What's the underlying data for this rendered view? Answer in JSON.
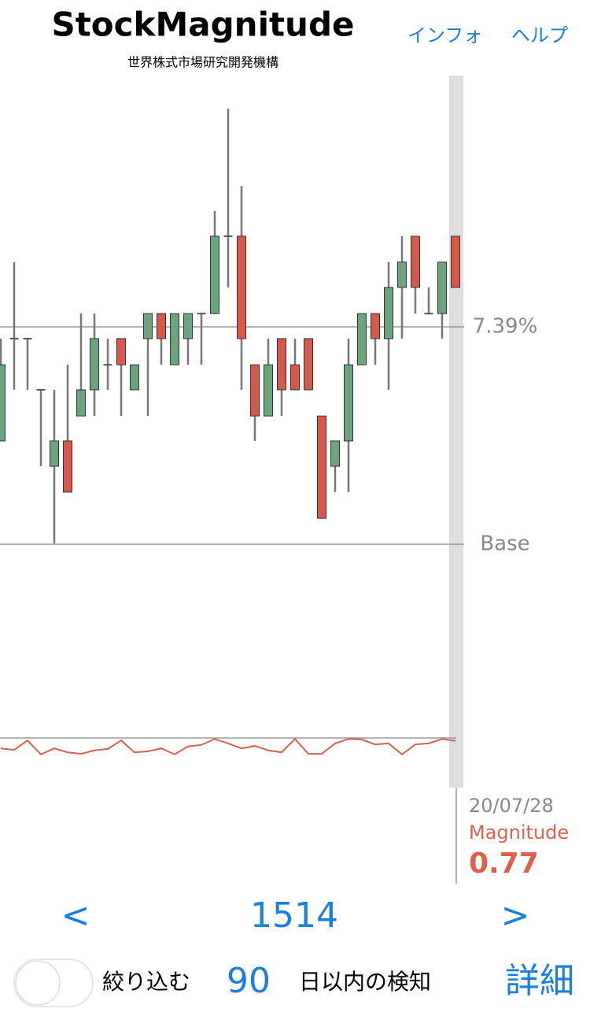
{
  "header": {
    "title": "StockMagnitude",
    "subtitle": "世界株式市場研究開発機構",
    "links": [
      "インフォ",
      "ヘルプ"
    ]
  },
  "chart_data": [
    {
      "type": "candlestick",
      "open": [
        3.51,
        6.99,
        6.99,
        5.25,
        2.65,
        3.51,
        4.36,
        5.25,
        6.1,
        6.99,
        5.25,
        6.99,
        7.84,
        6.1,
        6.99,
        7.84,
        7.84,
        10.47,
        10.47,
        6.1,
        4.36,
        6.99,
        6.1,
        6.99,
        4.36,
        2.65,
        3.51,
        6.1,
        7.84,
        6.99,
        8.73,
        10.47,
        7.84,
        7.84,
        10.47
      ],
      "high": [
        6.99,
        9.59,
        6.99,
        5.25,
        5.25,
        6.1,
        7.84,
        7.84,
        6.99,
        6.99,
        6.1,
        7.84,
        7.84,
        7.84,
        7.84,
        7.84,
        11.33,
        14.81,
        12.18,
        6.1,
        6.99,
        6.99,
        6.99,
        6.99,
        4.36,
        3.51,
        6.99,
        7.84,
        7.84,
        9.59,
        10.47,
        10.47,
        8.73,
        9.59,
        10.47
      ],
      "low": [
        3.51,
        5.25,
        5.25,
        2.65,
        0.03,
        1.77,
        4.36,
        4.36,
        5.25,
        4.36,
        5.25,
        4.36,
        6.1,
        6.1,
        6.1,
        6.1,
        7.84,
        8.73,
        5.25,
        3.51,
        4.36,
        4.36,
        5.25,
        5.25,
        0.88,
        1.77,
        1.77,
        6.1,
        6.1,
        5.25,
        6.99,
        7.84,
        7.84,
        6.99,
        8.73
      ],
      "close": [
        6.1,
        6.99,
        6.99,
        5.25,
        3.51,
        1.77,
        5.25,
        6.99,
        6.1,
        6.1,
        6.1,
        7.84,
        6.99,
        7.84,
        7.84,
        7.84,
        10.47,
        10.47,
        6.99,
        4.36,
        6.1,
        5.25,
        5.25,
        5.25,
        0.88,
        3.51,
        6.1,
        7.84,
        6.99,
        8.73,
        9.59,
        8.73,
        7.84,
        9.59,
        8.73
      ],
      "up_color": "#6aa57e",
      "down_color": "#d9584c",
      "ylim": [
        0,
        16
      ],
      "yticks": [
        {
          "value": 7.39,
          "label": "7.39%"
        },
        {
          "value": 0,
          "label": "Base"
        }
      ]
    },
    {
      "type": "line",
      "name": "Magnitude",
      "color": "#d9604c",
      "values": [
        0.79,
        0.76,
        0.95,
        0.67,
        0.79,
        0.71,
        0.68,
        0.75,
        0.78,
        0.95,
        0.71,
        0.73,
        0.79,
        0.67,
        0.83,
        0.86,
        0.98,
        0.89,
        0.79,
        0.84,
        0.75,
        0.71,
        0.98,
        0.68,
        0.68,
        0.89,
        0.98,
        0.97,
        0.87,
        0.89,
        0.67,
        0.87,
        0.89,
        0.98,
        0.94
      ],
      "ylim": [
        0,
        1
      ]
    }
  ],
  "info": {
    "date": "20/07/28",
    "label": "Magnitude",
    "value": "0.77"
  },
  "nav": {
    "prev": "<",
    "page": "1514",
    "next": ">"
  },
  "filter": {
    "toggle_on": false,
    "label": "絞り込む",
    "days": "90",
    "suffix": "日以内の検知"
  },
  "details": "詳細"
}
